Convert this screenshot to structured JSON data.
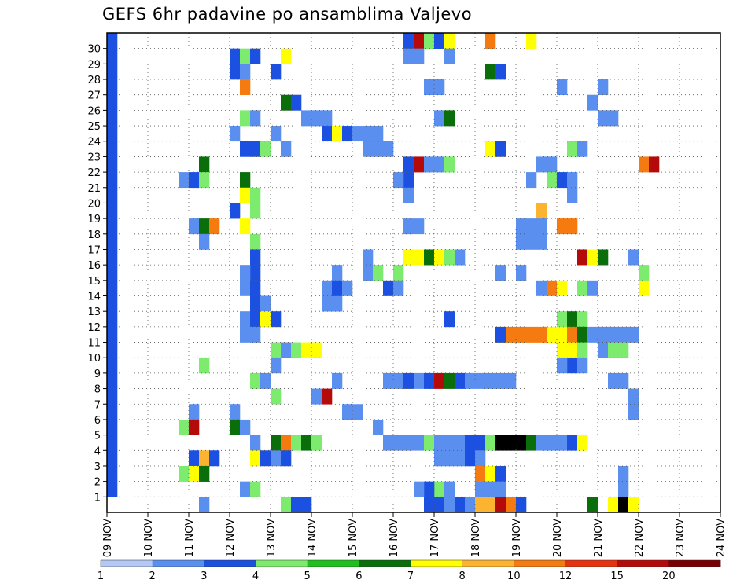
{
  "chart_data": {
    "type": "heatmap",
    "title": "GEFS 6hr padavine po ansamblima Valjevo",
    "x_labels": [
      "09 NOV",
      "10 NOV",
      "11 NOV",
      "12 NOV",
      "13 NOV",
      "14 NOV",
      "15 NOV",
      "16 NOV",
      "17 NOV",
      "18 NOV",
      "19 NOV",
      "20 NOV",
      "21 NOV",
      "22 NOV",
      "23 NOV",
      "24 NOV"
    ],
    "y_ticks": [
      1,
      2,
      3,
      4,
      5,
      6,
      7,
      8,
      9,
      10,
      11,
      12,
      13,
      14,
      15,
      16,
      17,
      18,
      19,
      20,
      21,
      22,
      23,
      24,
      25,
      26,
      27,
      28,
      29,
      30
    ],
    "grid": true,
    "legend": {
      "position": "bottom",
      "labels": [
        "1",
        "2",
        "3",
        "4",
        "5",
        "6",
        "7",
        "8",
        "10",
        "12",
        "15",
        "20"
      ],
      "colors": [
        "#b4c8f5",
        "#5a8ff0",
        "#1c50e0",
        "#7ceb6e",
        "#1fbf1f",
        "#0a6e0a",
        "#ffff00",
        "#fcb430",
        "#f57b10",
        "#e63210",
        "#b40a0a",
        "#780000"
      ]
    },
    "x_range": [
      0,
      60
    ],
    "y_range": [
      0,
      30
    ],
    "cells": [
      [
        0,
        30,
        2
      ],
      [
        0,
        29,
        2
      ],
      [
        0,
        28,
        2
      ],
      [
        0,
        27,
        2
      ],
      [
        0,
        26,
        2
      ],
      [
        0,
        25,
        2
      ],
      [
        0,
        24,
        2
      ],
      [
        0,
        23,
        2
      ],
      [
        0,
        22,
        2
      ],
      [
        0,
        21,
        2
      ],
      [
        0,
        20,
        2
      ],
      [
        0,
        19,
        2
      ],
      [
        0,
        18,
        2
      ],
      [
        0,
        17,
        2
      ],
      [
        0,
        16,
        2
      ],
      [
        0,
        15,
        2
      ],
      [
        0,
        14,
        2
      ],
      [
        0,
        13,
        2
      ],
      [
        0,
        12,
        2
      ],
      [
        0,
        11,
        2
      ],
      [
        0,
        10,
        2
      ],
      [
        0,
        9,
        2
      ],
      [
        0,
        8,
        2
      ],
      [
        0,
        7,
        2
      ],
      [
        0,
        6,
        2
      ],
      [
        0,
        5,
        2
      ],
      [
        0,
        4,
        2
      ],
      [
        0,
        3,
        2
      ],
      [
        0,
        2,
        2
      ],
      [
        0,
        1,
        2
      ],
      [
        12,
        29,
        2
      ],
      [
        13,
        29,
        3
      ],
      [
        14,
        29,
        2
      ],
      [
        17,
        29,
        6
      ],
      [
        12,
        28,
        2
      ],
      [
        13,
        28,
        1
      ],
      [
        16,
        28,
        2
      ],
      [
        13,
        27,
        8
      ],
      [
        17,
        26,
        5
      ],
      [
        18,
        26,
        2
      ],
      [
        13,
        25,
        3
      ],
      [
        14,
        25,
        1
      ],
      [
        19,
        25,
        1
      ],
      [
        20,
        25,
        1
      ],
      [
        21,
        25,
        1
      ],
      [
        12,
        24,
        1
      ],
      [
        16,
        24,
        1
      ],
      [
        21,
        24,
        2
      ],
      [
        22,
        24,
        6
      ],
      [
        23,
        24,
        2
      ],
      [
        24,
        24,
        1
      ],
      [
        25,
        24,
        1
      ],
      [
        26,
        24,
        1
      ],
      [
        13,
        23,
        2
      ],
      [
        14,
        23,
        2
      ],
      [
        15,
        23,
        3
      ],
      [
        17,
        23,
        1
      ],
      [
        9,
        22,
        5
      ],
      [
        7,
        21,
        1
      ],
      [
        8,
        21,
        2
      ],
      [
        9,
        21,
        3
      ],
      [
        13,
        21,
        5
      ],
      [
        13,
        20,
        6
      ],
      [
        14,
        20,
        3
      ],
      [
        14,
        19,
        3
      ],
      [
        12,
        19,
        2
      ],
      [
        13,
        18,
        6
      ],
      [
        8,
        18,
        1
      ],
      [
        9,
        18,
        5
      ],
      [
        10,
        18,
        8
      ],
      [
        14,
        17,
        3
      ],
      [
        9,
        17,
        1
      ],
      [
        14,
        16,
        2
      ],
      [
        14,
        15,
        2
      ],
      [
        13,
        15,
        1
      ],
      [
        13,
        14,
        1
      ],
      [
        14,
        14,
        2
      ],
      [
        14,
        13,
        2
      ],
      [
        15,
        13,
        1
      ],
      [
        13,
        12,
        1
      ],
      [
        14,
        12,
        2
      ],
      [
        15,
        12,
        6
      ],
      [
        16,
        12,
        2
      ],
      [
        14,
        11,
        1
      ],
      [
        13,
        11,
        1
      ],
      [
        16,
        10,
        3
      ],
      [
        17,
        10,
        1
      ],
      [
        18,
        10,
        3
      ],
      [
        19,
        10,
        6
      ],
      [
        20,
        10,
        6
      ],
      [
        9,
        9,
        3
      ],
      [
        16,
        9,
        1
      ],
      [
        14,
        8,
        3
      ],
      [
        15,
        8,
        1
      ],
      [
        16,
        7,
        3
      ],
      [
        8,
        6,
        1
      ],
      [
        12,
        6,
        1
      ],
      [
        7,
        5,
        3
      ],
      [
        8,
        5,
        10
      ],
      [
        12,
        5,
        5
      ],
      [
        13,
        5,
        1
      ],
      [
        14,
        4,
        1
      ],
      [
        16,
        4,
        5
      ],
      [
        17,
        4,
        8
      ],
      [
        18,
        4,
        3
      ],
      [
        19,
        4,
        5
      ],
      [
        20,
        4,
        3
      ],
      [
        8,
        3,
        2
      ],
      [
        9,
        3,
        7
      ],
      [
        10,
        3,
        2
      ],
      [
        14,
        3,
        6
      ],
      [
        15,
        3,
        2
      ],
      [
        16,
        3,
        1
      ],
      [
        17,
        3,
        2
      ],
      [
        7,
        2,
        3
      ],
      [
        8,
        2,
        6
      ],
      [
        9,
        2,
        5
      ],
      [
        13,
        1,
        1
      ],
      [
        14,
        1,
        3
      ],
      [
        17,
        0,
        3
      ],
      [
        18,
        0,
        2
      ],
      [
        19,
        0,
        2
      ],
      [
        9,
        0,
        1
      ],
      [
        25,
        24,
        1
      ],
      [
        25,
        23,
        1
      ],
      [
        26,
        23,
        1
      ],
      [
        27,
        23,
        1
      ],
      [
        21,
        14,
        1
      ],
      [
        21,
        13,
        1
      ],
      [
        22,
        13,
        1
      ],
      [
        20,
        7,
        1
      ],
      [
        21,
        7,
        10
      ],
      [
        22,
        8,
        1
      ],
      [
        22,
        15,
        1
      ],
      [
        22,
        14,
        2
      ],
      [
        23,
        14,
        1
      ],
      [
        25,
        15,
        1
      ],
      [
        26,
        15,
        3
      ],
      [
        25,
        16,
        1
      ],
      [
        27,
        8,
        1
      ],
      [
        28,
        8,
        1
      ],
      [
        29,
        8,
        2
      ],
      [
        30,
        8,
        1
      ],
      [
        31,
        8,
        2
      ],
      [
        32,
        8,
        10
      ],
      [
        33,
        8,
        5
      ],
      [
        34,
        8,
        2
      ],
      [
        35,
        8,
        1
      ],
      [
        36,
        8,
        1
      ],
      [
        37,
        8,
        1
      ],
      [
        23,
        6,
        1
      ],
      [
        24,
        6,
        1
      ],
      [
        26,
        5,
        1
      ],
      [
        27,
        4,
        1
      ],
      [
        28,
        4,
        1
      ],
      [
        29,
        4,
        1
      ],
      [
        30,
        4,
        1
      ],
      [
        31,
        4,
        3
      ],
      [
        32,
        4,
        1
      ],
      [
        33,
        4,
        1
      ],
      [
        34,
        4,
        1
      ],
      [
        35,
        4,
        2
      ],
      [
        36,
        4,
        2
      ],
      [
        37,
        4,
        3
      ],
      [
        38,
        4,
        12
      ],
      [
        39,
        4,
        12
      ],
      [
        40,
        4,
        12
      ],
      [
        41,
        4,
        5
      ],
      [
        42,
        4,
        1
      ],
      [
        43,
        4,
        1
      ],
      [
        44,
        4,
        1
      ],
      [
        45,
        4,
        2
      ],
      [
        46,
        4,
        6
      ],
      [
        32,
        3,
        1
      ],
      [
        33,
        3,
        1
      ],
      [
        34,
        3,
        1
      ],
      [
        35,
        3,
        2
      ],
      [
        36,
        3,
        1
      ],
      [
        36,
        2,
        8
      ],
      [
        37,
        2,
        6
      ],
      [
        38,
        2,
        2
      ],
      [
        36,
        1,
        1
      ],
      [
        37,
        1,
        1
      ],
      [
        38,
        1,
        1
      ],
      [
        32,
        1,
        3
      ],
      [
        33,
        1,
        1
      ],
      [
        31,
        1,
        2
      ],
      [
        30,
        1,
        1
      ],
      [
        31,
        0,
        2
      ],
      [
        32,
        0,
        2
      ],
      [
        33,
        0,
        1
      ],
      [
        34,
        0,
        2
      ],
      [
        35,
        0,
        1
      ],
      [
        36,
        0,
        7
      ],
      [
        37,
        0,
        7
      ],
      [
        38,
        0,
        10
      ],
      [
        39,
        0,
        8
      ],
      [
        40,
        0,
        2
      ],
      [
        47,
        0,
        5
      ],
      [
        49,
        0,
        6
      ],
      [
        50,
        0,
        12
      ],
      [
        51,
        0,
        6
      ],
      [
        50,
        1,
        1
      ],
      [
        50,
        2,
        1
      ],
      [
        29,
        30,
        2
      ],
      [
        30,
        30,
        10
      ],
      [
        31,
        30,
        3
      ],
      [
        32,
        30,
        2
      ],
      [
        33,
        30,
        6
      ],
      [
        37,
        30,
        8
      ],
      [
        41,
        30,
        6
      ],
      [
        29,
        29,
        1
      ],
      [
        30,
        29,
        1
      ],
      [
        33,
        29,
        1
      ],
      [
        37,
        28,
        5
      ],
      [
        38,
        28,
        2
      ],
      [
        31,
        27,
        1
      ],
      [
        32,
        27,
        1
      ],
      [
        44,
        27,
        1
      ],
      [
        48,
        27,
        1
      ],
      [
        47,
        26,
        1
      ],
      [
        32,
        25,
        1
      ],
      [
        33,
        25,
        5
      ],
      [
        48,
        25,
        1
      ],
      [
        49,
        25,
        1
      ],
      [
        37,
        23,
        6
      ],
      [
        38,
        23,
        2
      ],
      [
        45,
        23,
        3
      ],
      [
        46,
        23,
        1
      ],
      [
        29,
        22,
        2
      ],
      [
        30,
        22,
        10
      ],
      [
        31,
        22,
        1
      ],
      [
        32,
        22,
        1
      ],
      [
        33,
        22,
        3
      ],
      [
        42,
        22,
        1
      ],
      [
        43,
        22,
        1
      ],
      [
        52,
        22,
        8
      ],
      [
        53,
        22,
        10
      ],
      [
        29,
        21,
        2
      ],
      [
        28,
        21,
        1
      ],
      [
        29,
        20,
        1
      ],
      [
        41,
        21,
        1
      ],
      [
        43,
        21,
        3
      ],
      [
        44,
        21,
        2
      ],
      [
        45,
        21,
        1
      ],
      [
        45,
        20,
        1
      ],
      [
        42,
        19,
        7
      ],
      [
        44,
        18,
        8
      ],
      [
        45,
        18,
        8
      ],
      [
        29,
        18,
        1
      ],
      [
        30,
        18,
        1
      ],
      [
        40,
        18,
        1
      ],
      [
        41,
        18,
        1
      ],
      [
        42,
        18,
        1
      ],
      [
        40,
        17,
        1
      ],
      [
        41,
        17,
        1
      ],
      [
        42,
        17,
        1
      ],
      [
        29,
        16,
        6
      ],
      [
        30,
        16,
        6
      ],
      [
        31,
        16,
        5
      ],
      [
        32,
        16,
        6
      ],
      [
        33,
        16,
        3
      ],
      [
        34,
        16,
        1
      ],
      [
        46,
        16,
        10
      ],
      [
        47,
        16,
        6
      ],
      [
        48,
        16,
        5
      ],
      [
        51,
        16,
        1
      ],
      [
        28,
        15,
        3
      ],
      [
        38,
        15,
        1
      ],
      [
        40,
        15,
        1
      ],
      [
        52,
        15,
        3
      ],
      [
        52,
        14,
        6
      ],
      [
        43,
        14,
        8
      ],
      [
        44,
        14,
        6
      ],
      [
        46,
        14,
        3
      ],
      [
        47,
        14,
        1
      ],
      [
        42,
        14,
        1
      ],
      [
        27,
        14,
        2
      ],
      [
        28,
        14,
        1
      ],
      [
        33,
        12,
        2
      ],
      [
        44,
        12,
        3
      ],
      [
        45,
        12,
        5
      ],
      [
        46,
        12,
        3
      ],
      [
        44,
        11,
        6
      ],
      [
        45,
        11,
        8
      ],
      [
        46,
        11,
        5
      ],
      [
        47,
        11,
        1
      ],
      [
        48,
        11,
        1
      ],
      [
        49,
        11,
        1
      ],
      [
        38,
        11,
        2
      ],
      [
        39,
        11,
        8
      ],
      [
        40,
        11,
        8
      ],
      [
        41,
        11,
        8
      ],
      [
        42,
        11,
        8
      ],
      [
        43,
        11,
        6
      ],
      [
        50,
        11,
        1
      ],
      [
        51,
        11,
        1
      ],
      [
        44,
        10,
        6
      ],
      [
        45,
        10,
        6
      ],
      [
        46,
        10,
        3
      ],
      [
        48,
        10,
        1
      ],
      [
        49,
        10,
        3
      ],
      [
        50,
        10,
        3
      ],
      [
        45,
        9,
        2
      ],
      [
        46,
        9,
        1
      ],
      [
        44,
        9,
        1
      ],
      [
        49,
        8,
        1
      ],
      [
        50,
        8,
        1
      ],
      [
        51,
        7,
        1
      ],
      [
        51,
        6,
        1
      ],
      [
        38,
        8,
        1
      ],
      [
        39,
        8,
        1
      ]
    ]
  }
}
